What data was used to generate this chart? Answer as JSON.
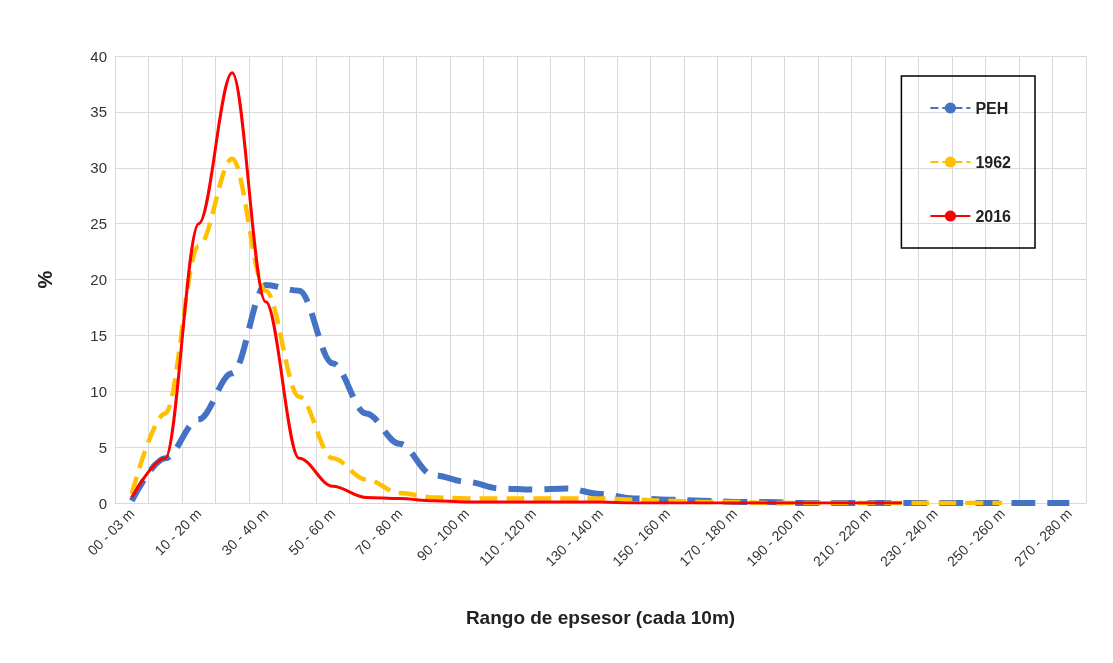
{
  "chart_data": {
    "type": "line",
    "xlabel": "Rango de epsesor (cada 10m)",
    "ylabel": "%",
    "categories": [
      "00 - 03 m",
      null,
      "10 - 20 m",
      null,
      "30 - 40 m",
      null,
      "50 - 60 m",
      null,
      "70 - 80 m",
      null,
      "90 - 100 m",
      null,
      "110 - 120 m",
      null,
      "130 - 140 m",
      null,
      "150 - 160 m",
      null,
      "170 - 180 m",
      null,
      "190 - 200 m",
      null,
      "210 - 220 m",
      null,
      "230 - 240 m",
      null,
      "250 - 260 m",
      null,
      "270 - 280 m"
    ],
    "series": [
      {
        "name": "PEH",
        "color": "#4472c4",
        "line_style": "dashed",
        "values": [
          0.2,
          4,
          7.5,
          11.6,
          19.5,
          19,
          12.5,
          8,
          5.3,
          2.5,
          1.9,
          1.3,
          1.2,
          1.3,
          0.8,
          0.4,
          0.3,
          0.2,
          0.1,
          0.1,
          0,
          0,
          0,
          0,
          0,
          0,
          0,
          0,
          0
        ]
      },
      {
        "name": "1962",
        "color": "#ffc000",
        "line_style": "dashed",
        "values": [
          0.8,
          8,
          23,
          30.8,
          19,
          9.5,
          4,
          2.1,
          0.9,
          0.5,
          0.4,
          0.4,
          0.4,
          0.4,
          0.4,
          0.3,
          0.2,
          0.1,
          0.1,
          0,
          0,
          0,
          0,
          0,
          0,
          0,
          0,
          null,
          null
        ]
      },
      {
        "name": "2016",
        "color": "#ff0000",
        "line_style": "solid",
        "values": [
          0.5,
          4,
          25,
          38.5,
          18,
          4,
          1.5,
          0.5,
          0.4,
          0.2,
          0.1,
          0.1,
          0.1,
          0.1,
          0.1,
          0,
          0,
          0,
          0,
          0,
          0,
          0,
          0,
          0,
          null,
          null,
          null,
          null,
          null
        ]
      }
    ],
    "ylim": [
      0,
      40
    ],
    "yticks": [
      0,
      5,
      10,
      15,
      20,
      25,
      30,
      35,
      40
    ],
    "grid": true,
    "legend": "top right",
    "marker": "none"
  }
}
